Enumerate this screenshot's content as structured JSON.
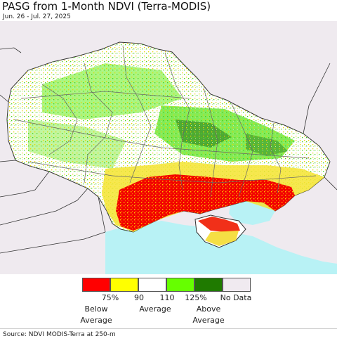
{
  "title": "PASG from 1-Month NDVI (Terra-MODIS)",
  "subtitle": "Jun. 26 - Jul. 27, 2025",
  "legend": {
    "colors": [
      "#ff0000",
      "#ffff00",
      "#ffffff",
      "#66ff00",
      "#1f7a00",
      "#f0eaf0"
    ],
    "ticks": [
      "75%",
      "90",
      "110",
      "125%",
      "No Data"
    ],
    "below_label": "Below\nAverage",
    "average_label": "Average",
    "above_label": "Above\nAverage"
  },
  "map_colors": {
    "land_outside": "#efeaef",
    "sea": "#b8f2f5",
    "country": "#ffffff",
    "borders": "#555555"
  },
  "source": "Source: NDVI MODIS-Terra at 250-m"
}
